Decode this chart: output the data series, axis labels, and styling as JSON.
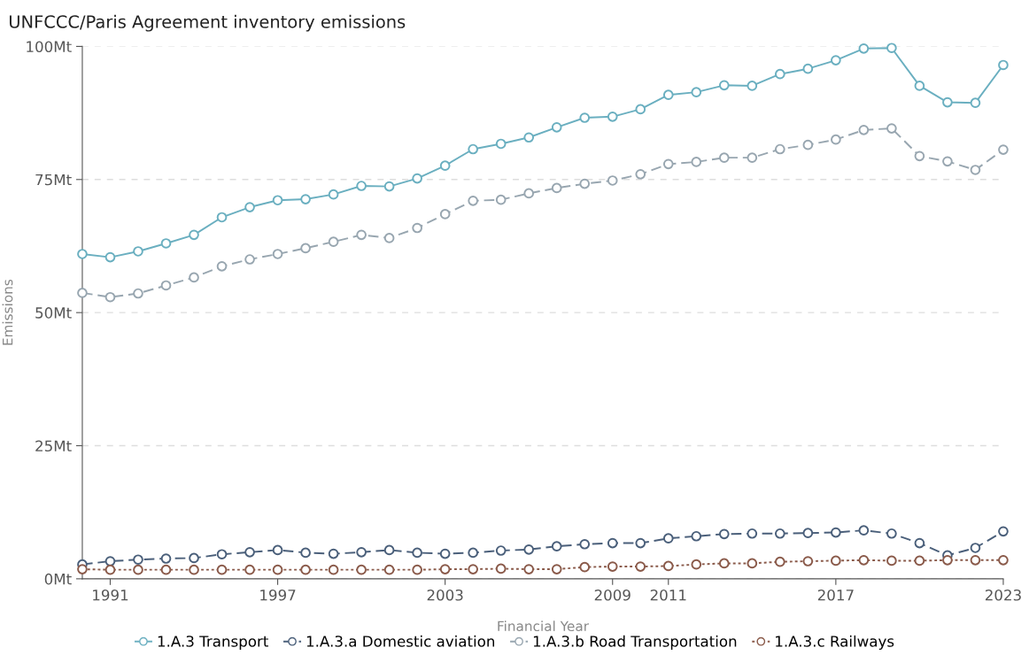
{
  "chart_data": {
    "type": "line",
    "title": "UNFCCC/Paris Agreement inventory emissions",
    "xlabel": "Financial Year",
    "ylabel": "Emissions",
    "x": [
      1990,
      1991,
      1992,
      1993,
      1994,
      1995,
      1996,
      1997,
      1998,
      1999,
      2000,
      2001,
      2002,
      2003,
      2004,
      2005,
      2006,
      2007,
      2008,
      2009,
      2010,
      2011,
      2012,
      2013,
      2014,
      2015,
      2016,
      2017,
      2018,
      2019,
      2020,
      2021,
      2022,
      2023
    ],
    "series": [
      {
        "name": "1.A.3 Transport",
        "color": "#6aafc0",
        "line_style": "solid",
        "values": [
          61.0,
          60.4,
          61.5,
          63.0,
          64.6,
          67.9,
          69.8,
          71.1,
          71.3,
          72.2,
          73.8,
          73.7,
          75.2,
          77.6,
          80.7,
          81.7,
          82.9,
          84.8,
          86.6,
          86.8,
          88.2,
          90.9,
          91.4,
          92.7,
          92.6,
          94.8,
          95.8,
          97.4,
          99.6,
          99.7,
          92.6,
          89.5,
          89.4,
          96.5
        ]
      },
      {
        "name": "1.A.3.a Domestic aviation",
        "color": "#4a5f7a",
        "line_style": "dashed",
        "values": [
          2.7,
          3.3,
          3.6,
          3.8,
          3.9,
          4.6,
          5.0,
          5.4,
          4.9,
          4.7,
          5.0,
          5.4,
          4.9,
          4.7,
          4.9,
          5.3,
          5.5,
          6.1,
          6.5,
          6.7,
          6.7,
          7.6,
          8.0,
          8.4,
          8.5,
          8.5,
          8.6,
          8.7,
          9.1,
          8.5,
          6.7,
          4.4,
          5.8,
          8.9
        ]
      },
      {
        "name": "1.A.3.b Road Transportation",
        "color": "#98a6b0",
        "line_style": "dashed",
        "values": [
          53.7,
          52.9,
          53.6,
          55.1,
          56.6,
          58.7,
          60.0,
          61.0,
          62.1,
          63.3,
          64.6,
          64.0,
          65.9,
          68.5,
          71.0,
          71.2,
          72.4,
          73.4,
          74.2,
          74.8,
          76.0,
          77.9,
          78.3,
          79.1,
          79.1,
          80.7,
          81.5,
          82.5,
          84.3,
          84.6,
          79.4,
          78.4,
          76.8,
          80.6
        ]
      },
      {
        "name": "1.A.3.c Railways",
        "color": "#8a5a4a",
        "line_style": "dotted",
        "values": [
          1.8,
          1.7,
          1.7,
          1.7,
          1.7,
          1.7,
          1.7,
          1.7,
          1.7,
          1.7,
          1.7,
          1.7,
          1.7,
          1.8,
          1.8,
          1.9,
          1.8,
          1.8,
          2.2,
          2.3,
          2.3,
          2.4,
          2.7,
          2.9,
          2.9,
          3.2,
          3.3,
          3.4,
          3.5,
          3.4,
          3.4,
          3.5,
          3.5,
          3.5
        ]
      }
    ],
    "xlim": [
      1990,
      2023
    ],
    "xticks": [
      1991,
      1997,
      2003,
      2009,
      2011,
      2017,
      2023
    ],
    "ylim": [
      0,
      100
    ],
    "yticks": [
      {
        "value": 0,
        "label": "0Mt"
      },
      {
        "value": 25,
        "label": "25Mt"
      },
      {
        "value": 50,
        "label": "50Mt"
      },
      {
        "value": 75,
        "label": "75Mt"
      },
      {
        "value": 100,
        "label": "100Mt"
      }
    ],
    "grid": "y",
    "legend": "bottom",
    "marker": "circle"
  }
}
